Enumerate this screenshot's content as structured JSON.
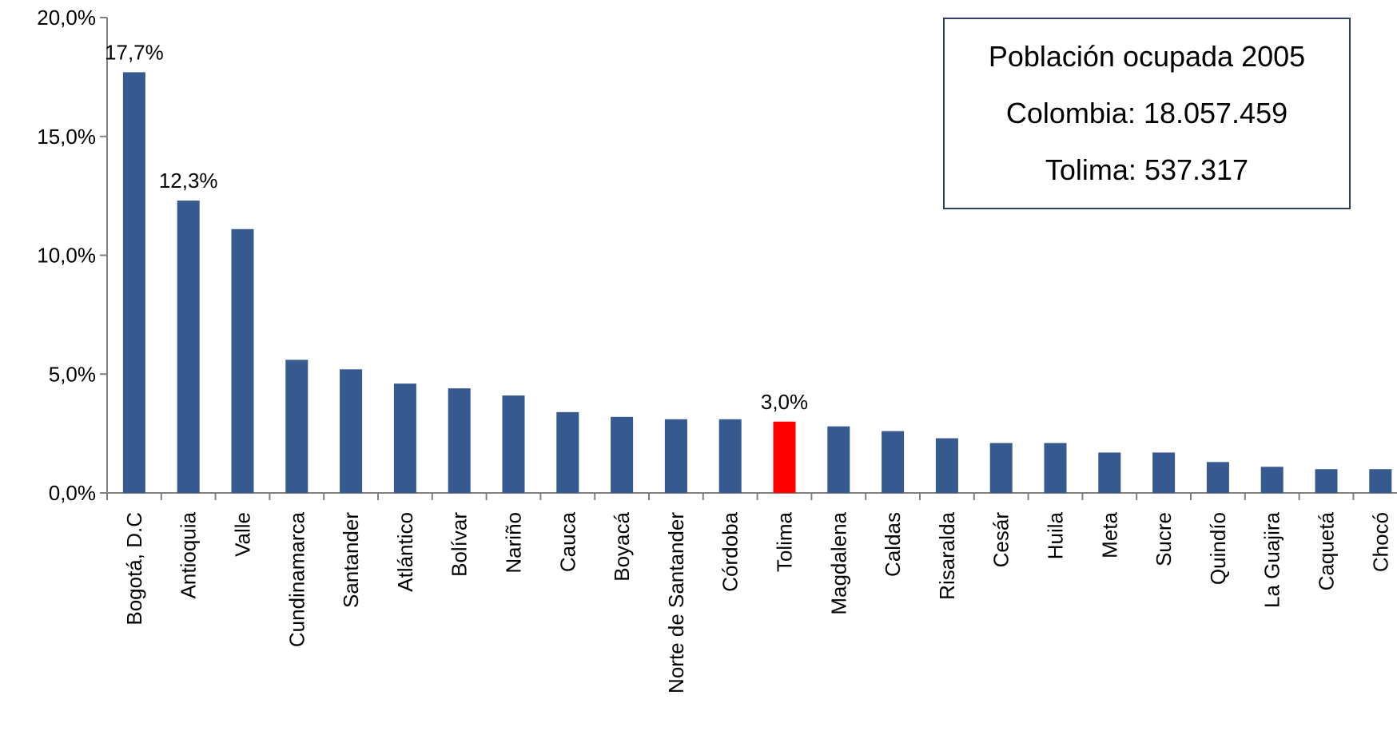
{
  "infobox": {
    "title": "Población ocupada 2005",
    "colombia": "Colombia: 18.057.459",
    "tolima": "Tolima: 537.317"
  },
  "chart_data": {
    "type": "bar",
    "categories": [
      "Bogotá, D.C",
      "Antioquia",
      "Valle",
      "Cundinamarca",
      "Santander",
      "Atlántico",
      "Bolívar",
      "Nariño",
      "Cauca",
      "Boyacá",
      "Norte de Santander",
      "Córdoba",
      "Tolima",
      "Magdalena",
      "Caldas",
      "Risaralda",
      "Cesár",
      "Huila",
      "Meta",
      "Sucre",
      "Quindío",
      "La Guajira",
      "Caquetá",
      "Chocó"
    ],
    "values": [
      17.7,
      12.3,
      11.1,
      5.6,
      5.2,
      4.6,
      4.4,
      4.1,
      3.4,
      3.2,
      3.1,
      3.1,
      3.0,
      2.8,
      2.6,
      2.3,
      2.1,
      2.1,
      1.7,
      1.7,
      1.3,
      1.1,
      1.0,
      1.0
    ],
    "ylim": [
      0,
      20
    ],
    "yticks": [
      0,
      5,
      10,
      15,
      20
    ],
    "ytick_labels": [
      "0,0%",
      "5,0%",
      "10,0%",
      "15,0%",
      "20,0%"
    ],
    "data_labels": {
      "0": "17,7%",
      "1": "12,3%",
      "12": "3,0%"
    },
    "highlight_index": 12,
    "colors": {
      "bar": "#36598f",
      "highlight": "#ff0000",
      "axis": "#808080"
    },
    "grid": false
  }
}
